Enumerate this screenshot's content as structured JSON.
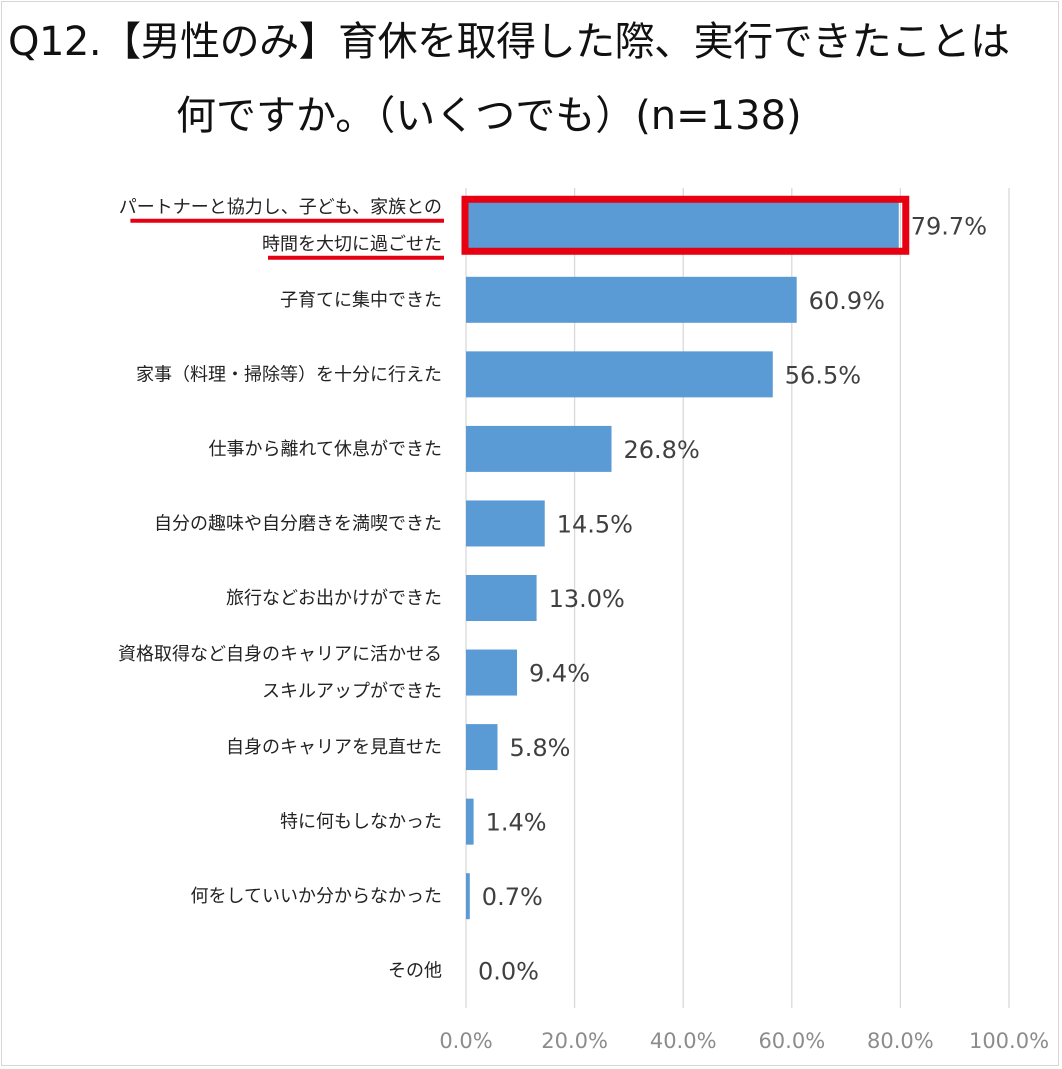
{
  "title": {
    "line1": "Q12.【男性のみ】育休を取得した際、実行できたことは",
    "line2": "何ですか。（いくつでも）(n=138)"
  },
  "colors": {
    "bar": "#5b9bd5",
    "highlight": "#e60012",
    "grid": "#d9d9d9",
    "tick_label": "#8c8c8c",
    "value_label": "#404040"
  },
  "chart_data": {
    "type": "bar",
    "orientation": "horizontal",
    "title": "Q12.【男性のみ】育休を取得した際、実行できたことは何ですか。（いくつでも）(n=138)",
    "categories": [
      [
        "パートナーと協力し、子ども、家族との",
        "時間を大切に過ごせた"
      ],
      [
        "子育てに集中できた"
      ],
      [
        "家事（料理・掃除等）を十分に行えた"
      ],
      [
        "仕事から離れて休息ができた"
      ],
      [
        "自分の趣味や自分磨きを満喫できた"
      ],
      [
        "旅行などお出かけができた"
      ],
      [
        "資格取得など自身のキャリアに活かせる",
        "スキルアップができた"
      ],
      [
        "自身のキャリアを見直せた"
      ],
      [
        "特に何もしなかった"
      ],
      [
        "何をしていいか分からなかった"
      ],
      [
        "その他"
      ]
    ],
    "values": [
      79.7,
      60.9,
      56.5,
      26.8,
      14.5,
      13.0,
      9.4,
      5.8,
      1.4,
      0.7,
      0.0
    ],
    "value_labels": [
      "79.7%",
      "60.9%",
      "56.5%",
      "26.8%",
      "14.5%",
      "13.0%",
      "9.4%",
      "5.8%",
      "1.4%",
      "0.7%",
      "0.0%"
    ],
    "xlim": [
      0,
      100
    ],
    "xticks": [
      0,
      20,
      40,
      60,
      80,
      100
    ],
    "xtick_labels": [
      "0.0%",
      "20.0%",
      "40.0%",
      "60.0%",
      "80.0%",
      "100.0%"
    ],
    "grid": "vertical",
    "highlight_index": 0
  }
}
